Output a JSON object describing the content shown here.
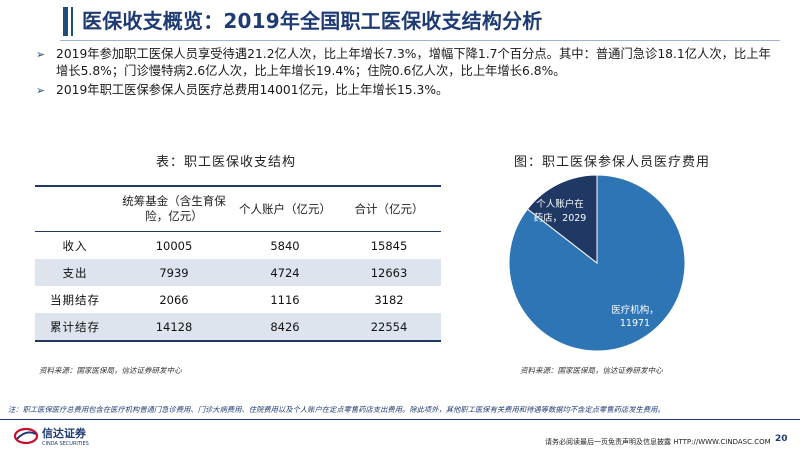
{
  "header": {
    "title": "医保收支概览：2019年全国职工医保收支结构分析"
  },
  "bullets": [
    "2019年参加职工医保人员享受待遇21.2亿人次，比上年增长7.3%，增幅下降1.7个百分点。其中：普通门急诊18.1亿人次，比上年增长5.8%；门诊慢特病2.6亿人次，比上年增长19.4%；住院0.6亿人次，比上年增长6.8%。",
    "2019年职工医保参保人员医疗总费用14001亿元，比上年增长15.3%。"
  ],
  "table": {
    "title": "表：职工医保收支结构",
    "columns": [
      "",
      "统筹基金（含生育保险，亿元）",
      "个人账户（亿元）",
      "合计（亿元）"
    ],
    "rows": [
      {
        "label": "收入",
        "cells": [
          "10005",
          "5840",
          "15845"
        ]
      },
      {
        "label": "支出",
        "cells": [
          "7939",
          "4724",
          "12663"
        ]
      },
      {
        "label": "当期结存",
        "cells": [
          "2066",
          "1116",
          "3182"
        ]
      },
      {
        "label": "累计结存",
        "cells": [
          "14128",
          "8426",
          "22554"
        ]
      }
    ],
    "source": "资料来源：国家医保局，信达证券研发中心"
  },
  "chart": {
    "title": "图：职工医保参保人员医疗费用",
    "source": "资料来源：国家医保局，信达证券研发中心",
    "label_small_line1": "个人账户在",
    "label_small_line2": "药店，2029",
    "label_big_line1": "医疗机构，",
    "label_big_line2": "11971"
  },
  "chart_data": {
    "type": "pie",
    "title": "图：职工医保参保人员医疗费用",
    "categories": [
      "医疗机构",
      "个人账户在药店"
    ],
    "values": [
      11971,
      2029
    ],
    "colors": [
      "#2e75b6",
      "#1f3864"
    ]
  },
  "footer": {
    "note": "注：职工医保医疗总费用包含在医疗机构普通门急诊费用、门诊大病费用、住院费用以及个人账户在定点零售药店支出费用。除此项外，其他职工医保有关费用和待遇等数据均不含定点零售药店发生费用。",
    "logo_cn": "信达证券",
    "logo_en": "CINDA SECURITIES",
    "disclaimer": "请务必阅读最后一页免责声明及信息披露  HTTP://WWW.CINDASC.COM",
    "page_number": "20"
  }
}
